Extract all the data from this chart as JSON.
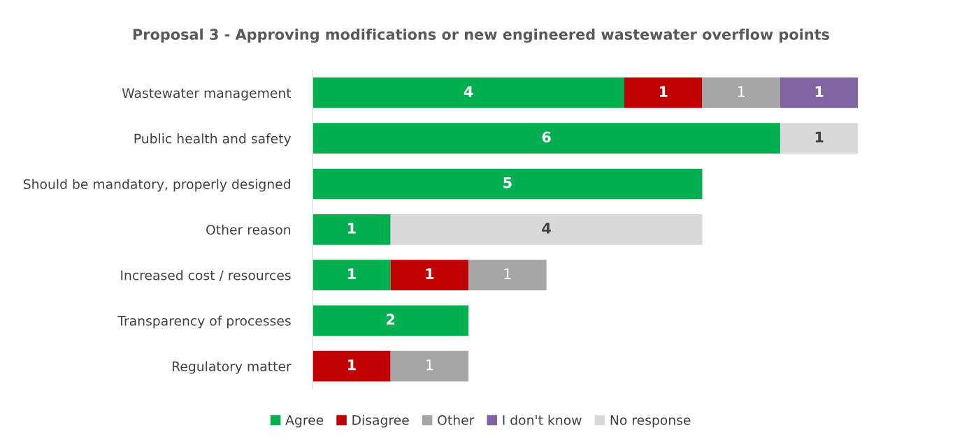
{
  "chart_data": {
    "type": "bar",
    "orientation": "horizontal",
    "stacked": true,
    "data_labels": true,
    "legend": "bottom",
    "grid": false,
    "title": "Proposal 3 - Approving modifications or new engineered wastewater overflow points",
    "categories": [
      "Wastewater management",
      "Public health and safety",
      "Should be mandatory, properly designed",
      "Other reason",
      "Increased cost / resources",
      "Transparency of processes",
      "Regulatory matter"
    ],
    "series": [
      {
        "name": "Agree",
        "color": "#00b050",
        "values": [
          4,
          6,
          5,
          1,
          1,
          2,
          null
        ]
      },
      {
        "name": "Disagree",
        "color": "#c00000",
        "values": [
          1,
          null,
          null,
          null,
          1,
          null,
          1
        ]
      },
      {
        "name": "Other",
        "color": "#a5a5a5",
        "values": [
          1,
          null,
          null,
          null,
          1,
          null,
          1
        ]
      },
      {
        "name": "I don't know",
        "color": "#8064a2",
        "values": [
          1,
          null,
          null,
          null,
          null,
          null,
          null
        ]
      },
      {
        "name": "No response",
        "color": "#d9d9d9",
        "values": [
          null,
          1,
          null,
          4,
          null,
          null,
          null
        ]
      }
    ]
  }
}
